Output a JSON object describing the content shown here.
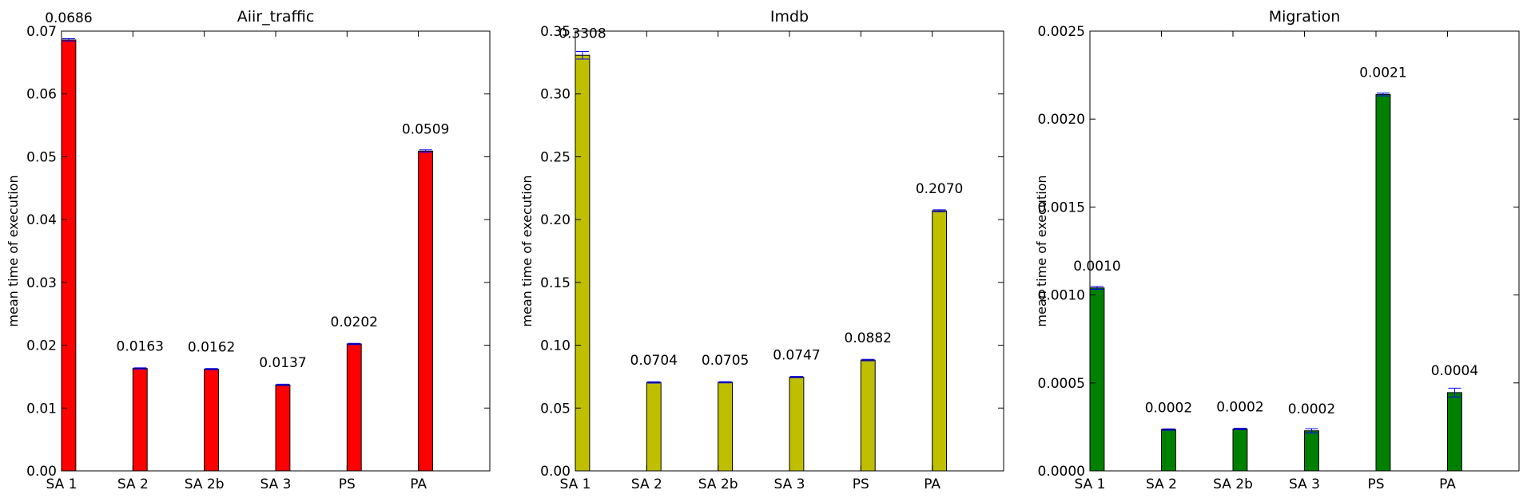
{
  "figure": {
    "background": "#ffffff",
    "bar_edge_color": "#000000",
    "error_bar_color": "#0000ff"
  },
  "chart_data": [
    {
      "type": "bar",
      "title": "Aiir_traffic",
      "ylabel": "mean time of execution",
      "xlabel": "",
      "categories": [
        "SA 1",
        "SA 2",
        "SA 2b",
        "SA 3",
        "PS",
        "PA"
      ],
      "values": [
        0.0686,
        0.0163,
        0.0162,
        0.0137,
        0.0202,
        0.0509
      ],
      "errors": [
        0.0002,
        0.0001,
        0.0001,
        0.0001,
        0.0001,
        0.0002
      ],
      "value_labels": [
        "0.0686",
        "0.0163",
        "0.0162",
        "0.0137",
        "0.0202",
        "0.0509"
      ],
      "ylim": [
        0,
        0.07
      ],
      "yticks": [
        0,
        0.01,
        0.02,
        0.03,
        0.04,
        0.05,
        0.06,
        0.07
      ],
      "ytick_labels": [
        "0.00",
        "0.01",
        "0.02",
        "0.03",
        "0.04",
        "0.05",
        "0.06",
        "0.07"
      ],
      "xlim": [
        0,
        6
      ],
      "bar_color": "#ff0000",
      "grid": false
    },
    {
      "type": "bar",
      "title": "Imdb",
      "ylabel": "mean time of execution",
      "xlabel": "",
      "categories": [
        "SA 1",
        "SA 2",
        "SA 2b",
        "SA 3",
        "PS",
        "PA"
      ],
      "values": [
        0.3308,
        0.0704,
        0.0705,
        0.0747,
        0.0882,
        0.207
      ],
      "errors": [
        0.003,
        0.0005,
        0.0005,
        0.0005,
        0.0006,
        0.0008
      ],
      "value_labels": [
        "0.3308",
        "0.0704",
        "0.0705",
        "0.0747",
        "0.0882",
        "0.2070"
      ],
      "ylim": [
        0,
        0.35
      ],
      "yticks": [
        0,
        0.05,
        0.1,
        0.15,
        0.2,
        0.25,
        0.3,
        0.35
      ],
      "ytick_labels": [
        "0.00",
        "0.05",
        "0.10",
        "0.15",
        "0.20",
        "0.25",
        "0.30",
        "0.35"
      ],
      "xlim": [
        0,
        6
      ],
      "bar_color": "#bfbf00",
      "grid": false
    },
    {
      "type": "bar",
      "title": "Migration",
      "ylabel": "mean time of execution",
      "xlabel": "",
      "categories": [
        "SA 1",
        "SA 2",
        "SA 2b",
        "SA 3",
        "PS",
        "PA"
      ],
      "values": [
        0.00104,
        0.000235,
        0.000238,
        0.000228,
        0.00214,
        0.000445
      ],
      "errors": [
        8e-06,
        4e-06,
        4e-06,
        1.2e-05,
        8e-06,
        2.5e-05
      ],
      "value_labels": [
        "0.0010",
        "0.0002",
        "0.0002",
        "0.0002",
        "0.0021",
        "0.0004"
      ],
      "ylim": [
        0,
        0.0025
      ],
      "yticks": [
        0,
        0.0005,
        0.001,
        0.0015,
        0.002,
        0.0025
      ],
      "ytick_labels": [
        "0.0000",
        "0.0005",
        "0.0010",
        "0.0015",
        "0.0020",
        "0.0025"
      ],
      "xlim": [
        0,
        6
      ],
      "bar_color": "#008000",
      "grid": false
    }
  ]
}
